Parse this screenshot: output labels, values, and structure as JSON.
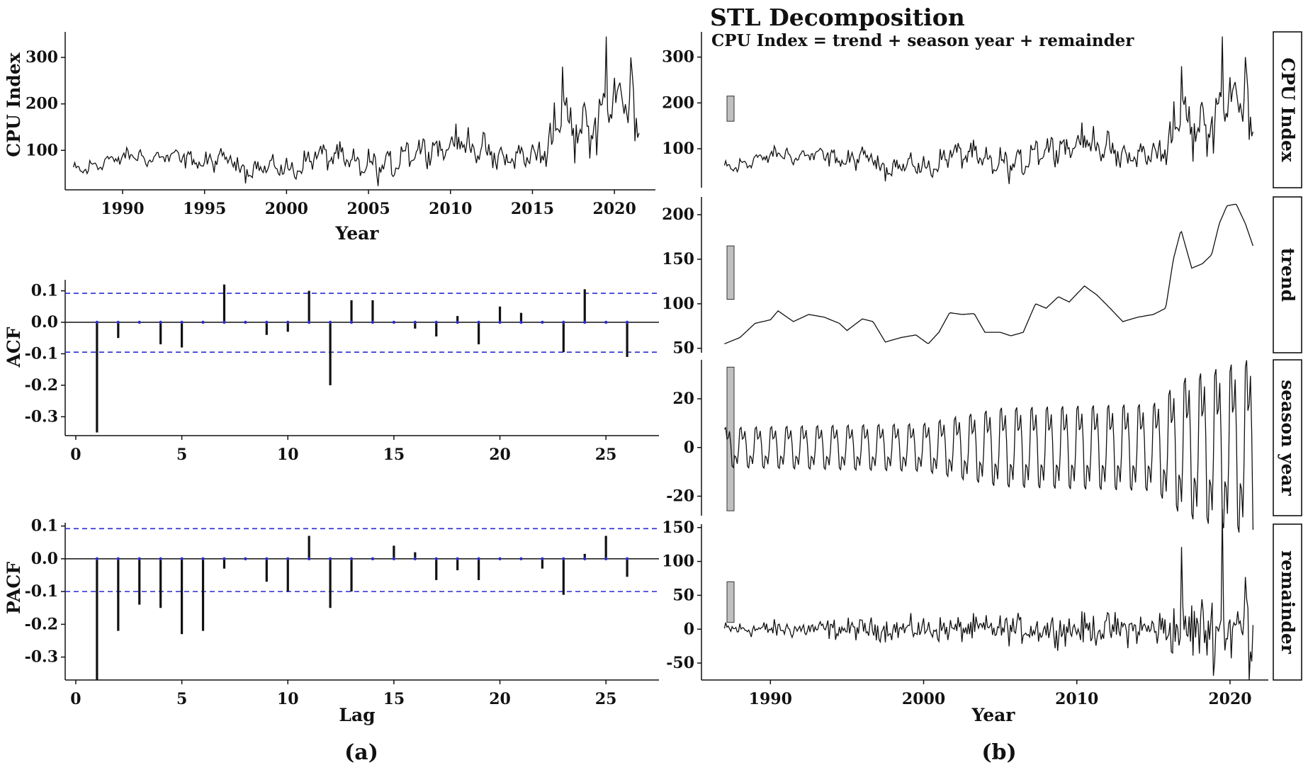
{
  "panel_a_caption": "(a)",
  "panel_b_caption": "(b)",
  "chart_data": [
    {
      "type": "line",
      "ylabel": "CPU Index",
      "xlabel": "Year",
      "xlim": [
        1986.5,
        2022.5
      ],
      "ylim": [
        15,
        355
      ],
      "x_ticks": [
        "1990",
        "1995",
        "2000",
        "2005",
        "2010",
        "2015",
        "2020"
      ],
      "y_ticks": [
        "100",
        "200",
        "300"
      ],
      "series": [
        {
          "x_start": 1987.0,
          "x_step": 0.0833,
          "anchors": [
            [
              1987.0,
              45
            ],
            [
              1988.0,
              60
            ],
            [
              1989.0,
              75
            ],
            [
              1990.0,
              85
            ],
            [
              1991.0,
              80
            ],
            [
              1992.0,
              78
            ],
            [
              1993.0,
              75
            ],
            [
              1994.0,
              70
            ],
            [
              1995.0,
              75
            ],
            [
              1996.0,
              70
            ],
            [
              1997.0,
              55
            ],
            [
              1998.0,
              55
            ],
            [
              1999.0,
              60
            ],
            [
              2000.0,
              55
            ],
            [
              2001.0,
              70
            ],
            [
              2002.0,
              80
            ],
            [
              2003.0,
              75
            ],
            [
              2004.0,
              68
            ],
            [
              2005.0,
              72
            ],
            [
              2006.0,
              75
            ],
            [
              2007.0,
              90
            ],
            [
              2008.0,
              95
            ],
            [
              2009.0,
              95
            ],
            [
              2010.0,
              100
            ],
            [
              2011.0,
              105
            ],
            [
              2012.0,
              95
            ],
            [
              2013.0,
              80
            ],
            [
              2014.0,
              85
            ],
            [
              2015.0,
              88
            ],
            [
              2016.0,
              100
            ],
            [
              2016.7,
              170
            ],
            [
              2017.5,
              150
            ],
            [
              2018.0,
              140
            ],
            [
              2019.0,
              180
            ],
            [
              2020.0,
              210
            ],
            [
              2021.0,
              200
            ],
            [
              2021.5,
              170
            ]
          ],
          "seasonal_amp": [
            [
              1987.0,
              10
            ],
            [
              2000.0,
              12
            ],
            [
              2005.0,
              20
            ],
            [
              2015.0,
              22
            ],
            [
              2017.0,
              35
            ],
            [
              2021.5,
              45
            ]
          ],
          "noise_amp": [
            [
              1987.0,
              10
            ],
            [
              2005.0,
              18
            ],
            [
              2015.0,
              22
            ],
            [
              2017.0,
              40
            ],
            [
              2021.5,
              55
            ]
          ],
          "peaks": [
            [
              2019.5,
              345
            ],
            [
              2021.0,
              300
            ],
            [
              2016.8,
              280
            ]
          ]
        }
      ]
    },
    {
      "type": "bar",
      "ylabel": "ACF",
      "xlabel": "",
      "xlim": [
        -0.5,
        27.5
      ],
      "ylim": [
        -0.36,
        0.135
      ],
      "x_ticks": [
        "0",
        "5",
        "10",
        "15",
        "20",
        "25"
      ],
      "y_ticks": [
        "0.1",
        "0.0",
        "-0.1",
        "-0.2",
        "-0.3"
      ],
      "ci": 0.092,
      "ci_lower": -0.095,
      "lags": [
        1,
        2,
        3,
        4,
        5,
        6,
        7,
        8,
        9,
        10,
        11,
        12,
        13,
        14,
        15,
        16,
        17,
        18,
        19,
        20,
        21,
        22,
        23,
        24,
        25,
        26
      ],
      "values": [
        -0.35,
        -0.05,
        0.0,
        -0.07,
        -0.08,
        0.0,
        0.12,
        0.0,
        -0.04,
        -0.03,
        0.1,
        -0.2,
        0.07,
        0.07,
        0.0,
        -0.02,
        -0.045,
        0.02,
        -0.07,
        0.05,
        0.03,
        0.0,
        -0.095,
        0.105,
        0.0,
        -0.11
      ]
    },
    {
      "type": "bar",
      "ylabel": "PACF",
      "xlabel": "Lag",
      "xlim": [
        -0.5,
        27.5
      ],
      "ylim": [
        -0.37,
        0.11
      ],
      "x_ticks": [
        "0",
        "5",
        "10",
        "15",
        "20",
        "25"
      ],
      "y_ticks": [
        "0.1",
        "0.0",
        "-0.1",
        "-0.2",
        "-0.3"
      ],
      "ci": 0.092,
      "ci_lower": -0.1,
      "lags": [
        1,
        2,
        3,
        4,
        5,
        6,
        7,
        8,
        9,
        10,
        11,
        12,
        13,
        14,
        15,
        16,
        17,
        18,
        19,
        20,
        21,
        22,
        23,
        24,
        25,
        26
      ],
      "values": [
        -0.37,
        -0.22,
        -0.14,
        -0.15,
        -0.23,
        -0.22,
        -0.03,
        0.0,
        -0.07,
        -0.1,
        0.07,
        -0.15,
        -0.1,
        0.0,
        0.04,
        0.02,
        -0.065,
        -0.035,
        -0.065,
        0.0,
        0.0,
        -0.03,
        -0.11,
        0.015,
        0.07,
        -0.055
      ]
    },
    {
      "type": "line",
      "title": "STL Decomposition",
      "subtitle": "CPU Index = trend + season year + remainder",
      "xlabel": "Year",
      "xlim": [
        1985.5,
        2022.5
      ],
      "x_ticks": [
        "1990",
        "2000",
        "2010",
        "2020"
      ],
      "panels": [
        {
          "name": "CPU Index",
          "ylim": [
            15,
            355
          ],
          "y_ticks": [
            "100",
            "200",
            "300"
          ],
          "scale_bar": [
            160,
            215
          ]
        },
        {
          "name": "trend",
          "ylim": [
            45,
            220
          ],
          "y_ticks": [
            "50",
            "100",
            "150",
            "200"
          ],
          "scale_bar": [
            105,
            165
          ],
          "anchors": [
            [
              1987.0,
              55
            ],
            [
              1988.0,
              62
            ],
            [
              1989.0,
              78
            ],
            [
              1990.0,
              82
            ],
            [
              1990.5,
              92
            ],
            [
              1991.5,
              80
            ],
            [
              1992.5,
              88
            ],
            [
              1993.5,
              85
            ],
            [
              1994.5,
              78
            ],
            [
              1995.0,
              70
            ],
            [
              1996.0,
              83
            ],
            [
              1996.7,
              80
            ],
            [
              1997.5,
              57
            ],
            [
              1998.5,
              62
            ],
            [
              1999.5,
              65
            ],
            [
              2000.3,
              55
            ],
            [
              2001.0,
              68
            ],
            [
              2001.7,
              90
            ],
            [
              2002.5,
              88
            ],
            [
              2003.3,
              89
            ],
            [
              2004.0,
              68
            ],
            [
              2005.0,
              68
            ],
            [
              2005.7,
              64
            ],
            [
              2006.5,
              68
            ],
            [
              2007.3,
              100
            ],
            [
              2008.0,
              95
            ],
            [
              2008.8,
              108
            ],
            [
              2009.5,
              102
            ],
            [
              2010.5,
              120
            ],
            [
              2011.3,
              110
            ],
            [
              2012.0,
              98
            ],
            [
              2013.0,
              80
            ],
            [
              2014.0,
              85
            ],
            [
              2015.0,
              88
            ],
            [
              2015.8,
              95
            ],
            [
              2016.3,
              150
            ],
            [
              2016.8,
              183
            ],
            [
              2017.5,
              140
            ],
            [
              2018.2,
              145
            ],
            [
              2018.8,
              155
            ],
            [
              2019.3,
              190
            ],
            [
              2019.8,
              210
            ],
            [
              2020.4,
              212
            ],
            [
              2021.0,
              190
            ],
            [
              2021.5,
              165
            ]
          ]
        },
        {
          "name": "season year",
          "ylim": [
            -28,
            36
          ],
          "y_ticks": [
            "20",
            "0",
            "-20"
          ],
          "scale_bar": [
            -26,
            33
          ]
        },
        {
          "name": "remainder",
          "ylim": [
            -75,
            155
          ],
          "y_ticks": [
            "150",
            "100",
            "50",
            "0",
            "-50"
          ],
          "scale_bar": [
            10,
            70
          ]
        }
      ]
    }
  ]
}
